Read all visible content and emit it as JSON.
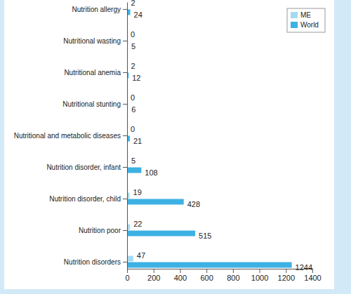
{
  "chart_data": {
    "type": "bar",
    "orientation": "horizontal",
    "categories": [
      "Nutrition allergy",
      "Nutritional wasting",
      "Nutritional anemia",
      "Nutritional stunting",
      "Nutritional and metabolic diseases",
      "Nutrition disorder, infant",
      "Nutrition disorder, child",
      "Nutrition poor",
      "Nutrition disorders"
    ],
    "series": [
      {
        "name": "ME",
        "color": "#a6daf0",
        "values": [
          2,
          0,
          2,
          0,
          0,
          5,
          19,
          22,
          47
        ]
      },
      {
        "name": "World",
        "color": "#3db1e3",
        "values": [
          24,
          5,
          12,
          6,
          21,
          108,
          428,
          515,
          1244
        ]
      }
    ],
    "xlim": [
      0,
      1400
    ],
    "xticks": [
      0,
      200,
      400,
      600,
      800,
      1000,
      1200,
      1400
    ],
    "data_labels": true,
    "legend": "top-right"
  }
}
